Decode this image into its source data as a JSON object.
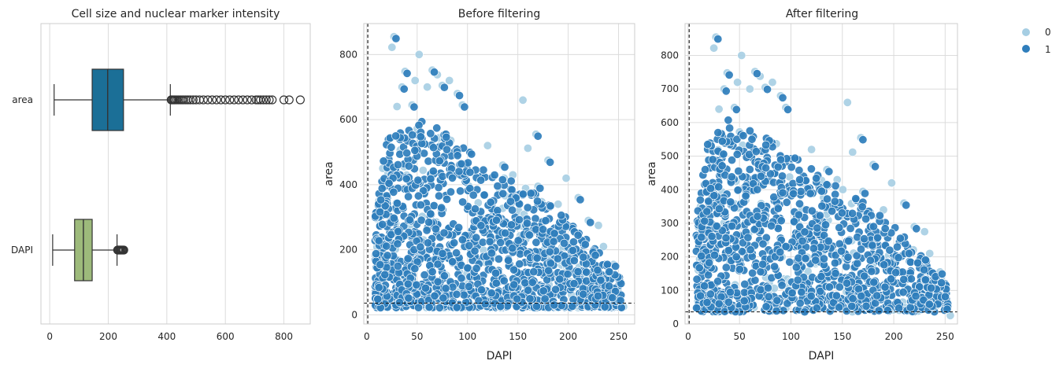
{
  "chart_data": [
    {
      "type": "box",
      "title": "Cell size and nuclear marker intensity",
      "orientation": "horizontal",
      "xlim": [
        -30,
        890
      ],
      "xticks": [
        0,
        200,
        400,
        600,
        800
      ],
      "categories": [
        "area",
        "DAPI"
      ],
      "colors": [
        "#1b6f97",
        "#9dba7b"
      ],
      "boxes": [
        {
          "label": "area",
          "q1": 145,
          "median": 198,
          "q3": 252,
          "whisker_low": 15,
          "whisker_high": 412,
          "outliers": [
            415,
            418,
            422,
            426,
            430,
            435,
            440,
            446,
            452,
            458,
            465,
            472,
            480,
            490,
            500,
            512,
            525,
            540,
            555,
            570,
            585,
            600,
            615,
            630,
            645,
            660,
            675,
            690,
            705,
            712,
            720,
            730,
            740,
            750,
            760,
            800,
            818,
            856
          ]
        },
        {
          "label": "DAPI",
          "q1": 85,
          "median": 115,
          "q3": 145,
          "whisker_low": 10,
          "whisker_high": 230,
          "outliers": [
            232,
            235,
            238,
            241,
            244,
            247,
            250,
            253
          ]
        }
      ]
    },
    {
      "type": "scatter",
      "title": "Before filtering",
      "xlabel": "DAPI",
      "ylabel": "area",
      "xlim": [
        -3,
        266
      ],
      "ylim": [
        -28,
        895
      ],
      "xticks": [
        0,
        50,
        100,
        150,
        200,
        250
      ],
      "yticks": [
        0,
        200,
        400,
        600,
        800
      ],
      "threshold_x": 1,
      "threshold_y": 36
    },
    {
      "type": "scatter",
      "title": "After filtering",
      "xlabel": "DAPI",
      "ylabel": "area",
      "xlim": [
        -3,
        262
      ],
      "ylim": [
        0,
        895
      ],
      "xticks": [
        0,
        50,
        100,
        150,
        200,
        250
      ],
      "yticks": [
        0,
        100,
        200,
        300,
        400,
        500,
        600,
        700,
        800
      ],
      "threshold_x": 1,
      "threshold_y": 36
    }
  ],
  "scatter_series": [
    {
      "name": "0",
      "color": "#a6cee3"
    },
    {
      "name": "1",
      "color": "#2f7ebc"
    }
  ],
  "highlight_points": [
    [
      27,
      855
    ],
    [
      25,
      822
    ],
    [
      38,
      748
    ],
    [
      52,
      800
    ],
    [
      65,
      752
    ],
    [
      70,
      738
    ],
    [
      75,
      705
    ],
    [
      82,
      720
    ],
    [
      90,
      680
    ],
    [
      155,
      660
    ],
    [
      168,
      555
    ],
    [
      160,
      512
    ],
    [
      180,
      475
    ],
    [
      198,
      420
    ],
    [
      210,
      360
    ],
    [
      230,
      275
    ],
    [
      245,
      155
    ],
    [
      240,
      105
    ],
    [
      20,
      410
    ],
    [
      12,
      350
    ],
    [
      10,
      90
    ],
    [
      30,
      640
    ],
    [
      45,
      645
    ],
    [
      60,
      700
    ],
    [
      95,
      645
    ],
    [
      120,
      520
    ],
    [
      135,
      460
    ],
    [
      145,
      430
    ],
    [
      170,
      395
    ],
    [
      190,
      340
    ],
    [
      220,
      290
    ],
    [
      235,
      210
    ],
    [
      250,
      50
    ],
    [
      255,
      25
    ],
    [
      35,
      700
    ],
    [
      48,
      720
    ]
  ]
}
